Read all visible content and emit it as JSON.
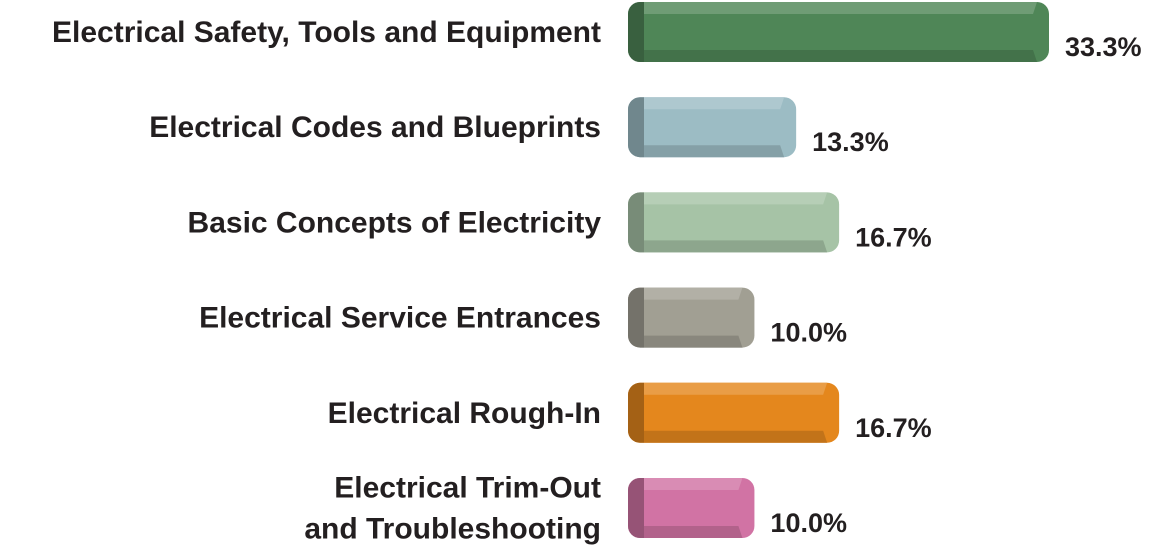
{
  "chart_data": {
    "type": "bar",
    "orientation": "horizontal",
    "categories": [
      "Electrical Safety, Tools and Equipment",
      "Electrical Codes and Blueprints",
      "Basic Concepts of Electricity",
      "Electrical Service Entrances",
      "Electrical Rough-In",
      "Electrical Trim-Out and Troubleshooting"
    ],
    "category_label_lines": [
      [
        "Electrical Safety, Tools and Equipment"
      ],
      [
        "Electrical Codes and Blueprints"
      ],
      [
        "Basic Concepts of Electricity"
      ],
      [
        "Electrical Service Entrances"
      ],
      [
        "Electrical Rough-In"
      ],
      [
        "Electrical Trim-Out",
        "and Troubleshooting"
      ]
    ],
    "values": [
      33.3,
      13.3,
      16.7,
      10.0,
      16.7,
      10.0
    ],
    "value_labels": [
      "33.3%",
      "13.3%",
      "16.7%",
      "10.0%",
      "16.7%",
      "10.0%"
    ],
    "colors": [
      "#4f8657",
      "#9cbcc4",
      "#a6c3a6",
      "#a19f93",
      "#e4871d",
      "#d173a4"
    ],
    "xlim": [
      0,
      33.3
    ],
    "grid": false,
    "legend": "none"
  }
}
